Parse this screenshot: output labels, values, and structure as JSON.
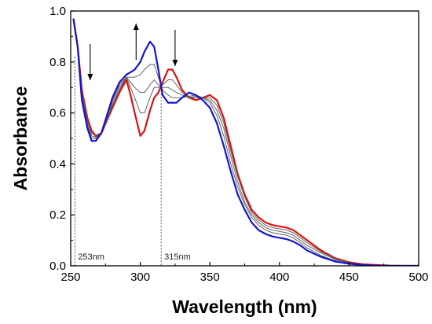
{
  "chart_data": {
    "type": "line",
    "title": "",
    "xlabel": "Wavelength (nm)",
    "ylabel": "Absorbance",
    "xlim": [
      250,
      500
    ],
    "ylim": [
      0.0,
      1.0
    ],
    "xticks": [
      250,
      300,
      350,
      400,
      450,
      500
    ],
    "yticks": [
      0.0,
      0.2,
      0.4,
      0.6,
      0.8,
      1.0
    ],
    "xtick_labels": [
      "250",
      "300",
      "350",
      "400",
      "450",
      "500"
    ],
    "ytick_labels": [
      "0.0",
      "0.2",
      "0.4",
      "0.6",
      "0.8",
      "1.0"
    ],
    "grid": false,
    "annotations": [
      {
        "text": "253nm",
        "x": 253
      },
      {
        "text": "315nm",
        "x": 315
      }
    ],
    "arrows": [
      {
        "x": 264,
        "direction": "down"
      },
      {
        "x": 297,
        "direction": "up"
      },
      {
        "x": 325,
        "direction": "down"
      }
    ],
    "series_colors": {
      "start": "#dd1111",
      "intermediate": "#555555",
      "end": "#1515cc"
    },
    "series": [
      {
        "color": "#dd1111",
        "x": [
          252,
          255,
          258,
          262,
          265,
          268,
          272,
          276,
          280,
          285,
          290,
          293,
          296,
          300,
          303,
          307,
          310,
          313,
          316,
          320,
          323,
          326,
          330,
          335,
          340,
          345,
          350,
          355,
          360,
          365,
          370,
          375,
          380,
          385,
          390,
          395,
          400,
          405,
          410,
          415,
          420,
          430,
          440,
          450,
          460,
          470,
          480,
          490,
          500
        ],
        "y": [
          0.97,
          0.86,
          0.69,
          0.58,
          0.53,
          0.51,
          0.52,
          0.57,
          0.62,
          0.68,
          0.73,
          0.67,
          0.6,
          0.51,
          0.53,
          0.61,
          0.66,
          0.68,
          0.72,
          0.77,
          0.77,
          0.74,
          0.69,
          0.66,
          0.65,
          0.66,
          0.67,
          0.65,
          0.58,
          0.47,
          0.36,
          0.28,
          0.22,
          0.19,
          0.17,
          0.16,
          0.155,
          0.15,
          0.14,
          0.12,
          0.1,
          0.06,
          0.03,
          0.014,
          0.006,
          0.003,
          0.001,
          0.0,
          0.0
        ]
      },
      {
        "color": "#555555",
        "x": [
          252,
          255,
          258,
          262,
          265,
          268,
          272,
          276,
          280,
          285,
          290,
          293,
          296,
          300,
          303,
          307,
          310,
          313,
          316,
          320,
          323,
          326,
          330,
          335,
          340,
          345,
          350,
          355,
          360,
          365,
          370,
          375,
          380,
          385,
          390,
          395,
          400,
          405,
          410,
          415,
          420,
          430,
          440,
          450,
          460,
          470,
          480,
          490,
          500
        ],
        "y": [
          0.97,
          0.86,
          0.68,
          0.57,
          0.52,
          0.51,
          0.52,
          0.57,
          0.63,
          0.69,
          0.74,
          0.7,
          0.66,
          0.6,
          0.6,
          0.66,
          0.7,
          0.7,
          0.71,
          0.73,
          0.73,
          0.71,
          0.68,
          0.66,
          0.66,
          0.66,
          0.66,
          0.63,
          0.56,
          0.45,
          0.35,
          0.27,
          0.21,
          0.18,
          0.16,
          0.15,
          0.145,
          0.14,
          0.13,
          0.11,
          0.09,
          0.055,
          0.028,
          0.012,
          0.005,
          0.002,
          0.001,
          0.0,
          0.0
        ]
      },
      {
        "color": "#555555",
        "x": [
          252,
          255,
          258,
          262,
          265,
          268,
          272,
          276,
          280,
          285,
          290,
          293,
          296,
          300,
          303,
          307,
          310,
          313,
          316,
          320,
          323,
          326,
          330,
          335,
          340,
          345,
          350,
          355,
          360,
          365,
          370,
          375,
          380,
          385,
          390,
          395,
          400,
          405,
          410,
          415,
          420,
          430,
          440,
          450,
          460,
          470,
          480,
          490,
          500
        ],
        "y": [
          0.97,
          0.86,
          0.67,
          0.56,
          0.51,
          0.505,
          0.52,
          0.57,
          0.64,
          0.7,
          0.74,
          0.72,
          0.7,
          0.68,
          0.68,
          0.71,
          0.73,
          0.71,
          0.7,
          0.7,
          0.69,
          0.68,
          0.67,
          0.66,
          0.665,
          0.66,
          0.65,
          0.61,
          0.54,
          0.43,
          0.33,
          0.25,
          0.2,
          0.17,
          0.15,
          0.14,
          0.135,
          0.13,
          0.12,
          0.1,
          0.08,
          0.05,
          0.025,
          0.011,
          0.004,
          0.002,
          0.001,
          0.0,
          0.0
        ]
      },
      {
        "color": "#555555",
        "x": [
          252,
          255,
          258,
          262,
          265,
          268,
          272,
          276,
          280,
          285,
          290,
          293,
          296,
          300,
          303,
          307,
          310,
          313,
          316,
          320,
          323,
          326,
          330,
          335,
          340,
          345,
          350,
          355,
          360,
          365,
          370,
          375,
          380,
          385,
          390,
          395,
          400,
          405,
          410,
          415,
          420,
          430,
          440,
          450,
          460,
          470,
          480,
          490,
          500
        ],
        "y": [
          0.97,
          0.86,
          0.66,
          0.55,
          0.5,
          0.5,
          0.52,
          0.58,
          0.65,
          0.71,
          0.74,
          0.74,
          0.74,
          0.75,
          0.77,
          0.79,
          0.79,
          0.74,
          0.69,
          0.67,
          0.66,
          0.66,
          0.66,
          0.665,
          0.67,
          0.66,
          0.64,
          0.59,
          0.51,
          0.4,
          0.31,
          0.24,
          0.19,
          0.16,
          0.14,
          0.13,
          0.125,
          0.12,
          0.11,
          0.09,
          0.07,
          0.04,
          0.02,
          0.009,
          0.004,
          0.002,
          0.001,
          0.0,
          0.0
        ]
      },
      {
        "color": "#1515cc",
        "x": [
          252,
          255,
          258,
          262,
          265,
          268,
          272,
          276,
          280,
          285,
          290,
          293,
          296,
          300,
          303,
          307,
          310,
          313,
          316,
          320,
          323,
          326,
          330,
          335,
          340,
          345,
          350,
          355,
          360,
          365,
          370,
          375,
          380,
          385,
          390,
          395,
          400,
          405,
          410,
          415,
          420,
          430,
          440,
          450,
          460,
          470,
          480,
          490,
          500
        ],
        "y": [
          0.97,
          0.86,
          0.65,
          0.54,
          0.49,
          0.49,
          0.52,
          0.59,
          0.66,
          0.72,
          0.75,
          0.76,
          0.77,
          0.8,
          0.84,
          0.88,
          0.86,
          0.77,
          0.67,
          0.64,
          0.64,
          0.64,
          0.66,
          0.68,
          0.67,
          0.65,
          0.62,
          0.56,
          0.47,
          0.37,
          0.28,
          0.22,
          0.17,
          0.14,
          0.125,
          0.115,
          0.11,
          0.105,
          0.095,
          0.08,
          0.06,
          0.035,
          0.017,
          0.008,
          0.003,
          0.001,
          0.0,
          0.0,
          0.0
        ]
      }
    ]
  }
}
